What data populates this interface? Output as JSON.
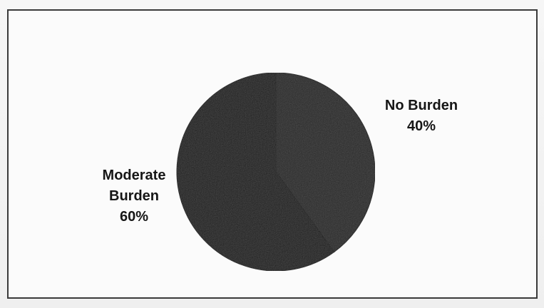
{
  "chart_data": {
    "type": "pie",
    "title": "",
    "slices": [
      {
        "label": [
          "No Burden",
          "40%"
        ],
        "value": 40,
        "color": "#2b2b2b"
      },
      {
        "label": [
          "Moderate",
          "Burden",
          "60%"
        ],
        "value": 60,
        "color": "#242424"
      }
    ],
    "start_angle_deg": 0,
    "direction": "clockwise",
    "legend": "none",
    "data_labels": "outside"
  }
}
